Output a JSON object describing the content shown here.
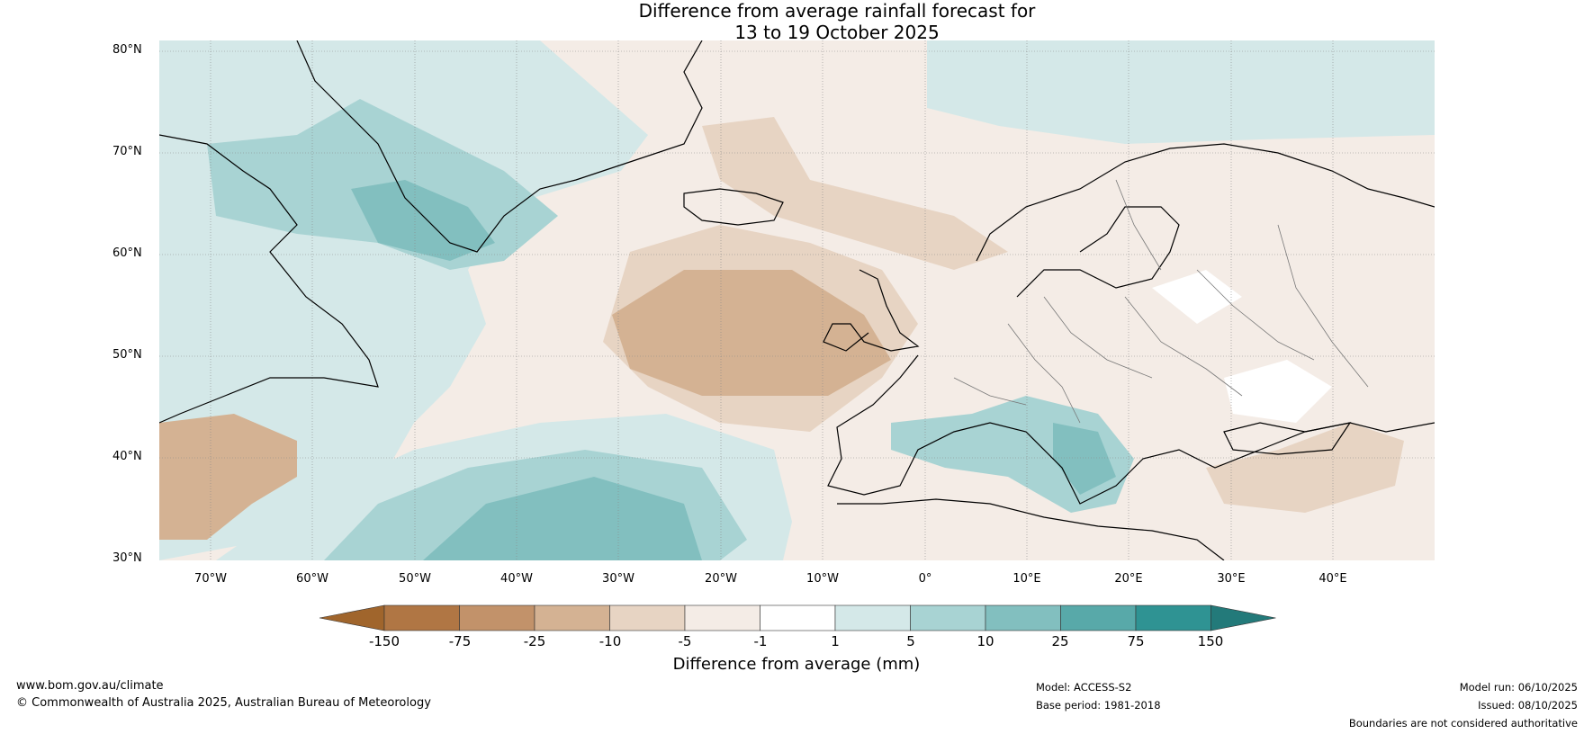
{
  "title": {
    "line1": "Difference from average rainfall forecast for",
    "line2": "13 to 19 October 2025"
  },
  "map": {
    "lat_labels": [
      "80°N",
      "70°N",
      "60°N",
      "50°N",
      "40°N",
      "30°N"
    ],
    "lon_labels": [
      "70°W",
      "60°W",
      "50°W",
      "40°W",
      "30°W",
      "20°W",
      "10°W",
      "0°",
      "10°E",
      "20°E",
      "30°E",
      "40°E"
    ]
  },
  "colorbar": {
    "title": "Difference from average (mm)",
    "ticks": [
      "-150",
      "-75",
      "-25",
      "-10",
      "-5",
      "-1",
      "1",
      "5",
      "10",
      "25",
      "75",
      "150"
    ],
    "colors": [
      "#a0652c",
      "#b07644",
      "#c2926a",
      "#d4b293",
      "#e7d4c3",
      "#f4ece6",
      "#ffffff",
      "#d4e8e8",
      "#a8d3d3",
      "#82bfbf",
      "#58a9a9",
      "#2f9393",
      "#237a7a"
    ]
  },
  "footer": {
    "website": "www.bom.gov.au/climate",
    "copyright": "© Commonwealth of Australia 2025, Australian Bureau of Meteorology",
    "model": "Model: ACCESS-S2",
    "base_period": "Base period: 1981-2018",
    "model_run": "Model run: 06/10/2025",
    "issued": "Issued: 08/10/2025",
    "boundaries": "Boundaries are not considered authoritative"
  }
}
